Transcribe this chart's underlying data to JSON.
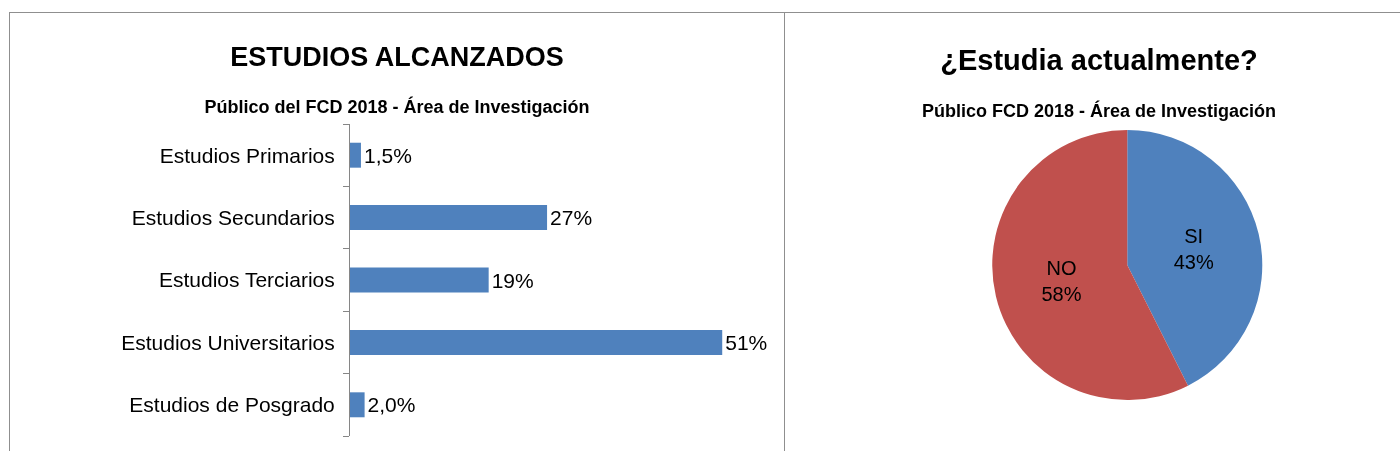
{
  "chart_data": [
    {
      "type": "bar",
      "orientation": "horizontal",
      "title": "ESTUDIOS ALCANZADOS",
      "subtitle": "Público del FCD 2018 - Área de Investigación",
      "categories": [
        "Estudios Primarios",
        "Estudios Secundarios",
        "Estudios Terciarios",
        "Estudios Universitarios",
        "Estudios de Posgrado"
      ],
      "values": [
        1.5,
        27,
        19,
        51,
        2.0
      ],
      "value_labels": [
        "1,5%",
        "27%",
        "19%",
        "51%",
        "2,0%"
      ],
      "color": "#4f81bd",
      "tick_labels": "y"
    },
    {
      "type": "pie",
      "title": "¿Estudia actualmente?",
      "subtitle": "Público FCD 2018 - Área de Investigación",
      "categories": [
        "SI",
        "NO"
      ],
      "values": [
        43,
        58
      ],
      "value_labels": [
        "43%",
        "58%"
      ],
      "colors": [
        "#4f81bd",
        "#c0504d"
      ]
    }
  ]
}
